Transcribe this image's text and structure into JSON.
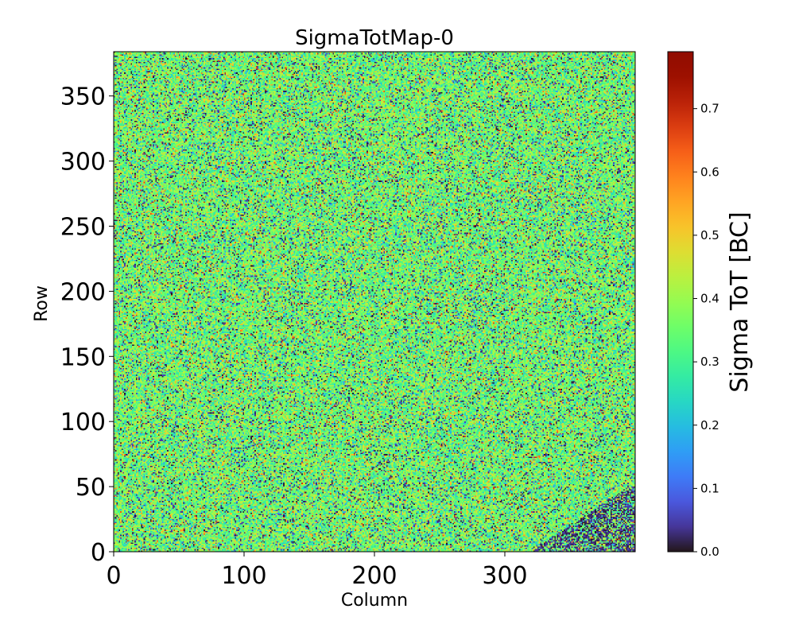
{
  "chart_data": {
    "type": "heatmap",
    "title": "SigmaTotMap-0",
    "xlabel": "Column",
    "ylabel": "Row",
    "xlim": [
      0,
      400
    ],
    "ylim": [
      0,
      384
    ],
    "xticks": [
      0,
      100,
      200,
      300
    ],
    "yticks": [
      0,
      50,
      100,
      150,
      200,
      250,
      300,
      350
    ],
    "colorbar": {
      "label": "Sigma ToT [BC]",
      "range": [
        0,
        0.79
      ],
      "ticks": [
        0.0,
        0.1,
        0.2,
        0.3,
        0.4,
        0.5,
        0.6,
        0.7
      ],
      "tick_labels": [
        "0.0",
        "0.1",
        "0.2",
        "0.3",
        "0.4",
        "0.5",
        "0.6",
        "0.7"
      ],
      "colormap": "turbo"
    },
    "grid": false,
    "pixel_grid": {
      "columns": 400,
      "rows": 384
    },
    "value_distribution": {
      "typical_range": [
        0.25,
        0.45
      ],
      "mode_value": 0.35,
      "low_value_fraction": 0.1,
      "low_value_region": "lower-right corner (columns above ~320, rows below ~50) has many near-zero values"
    }
  }
}
